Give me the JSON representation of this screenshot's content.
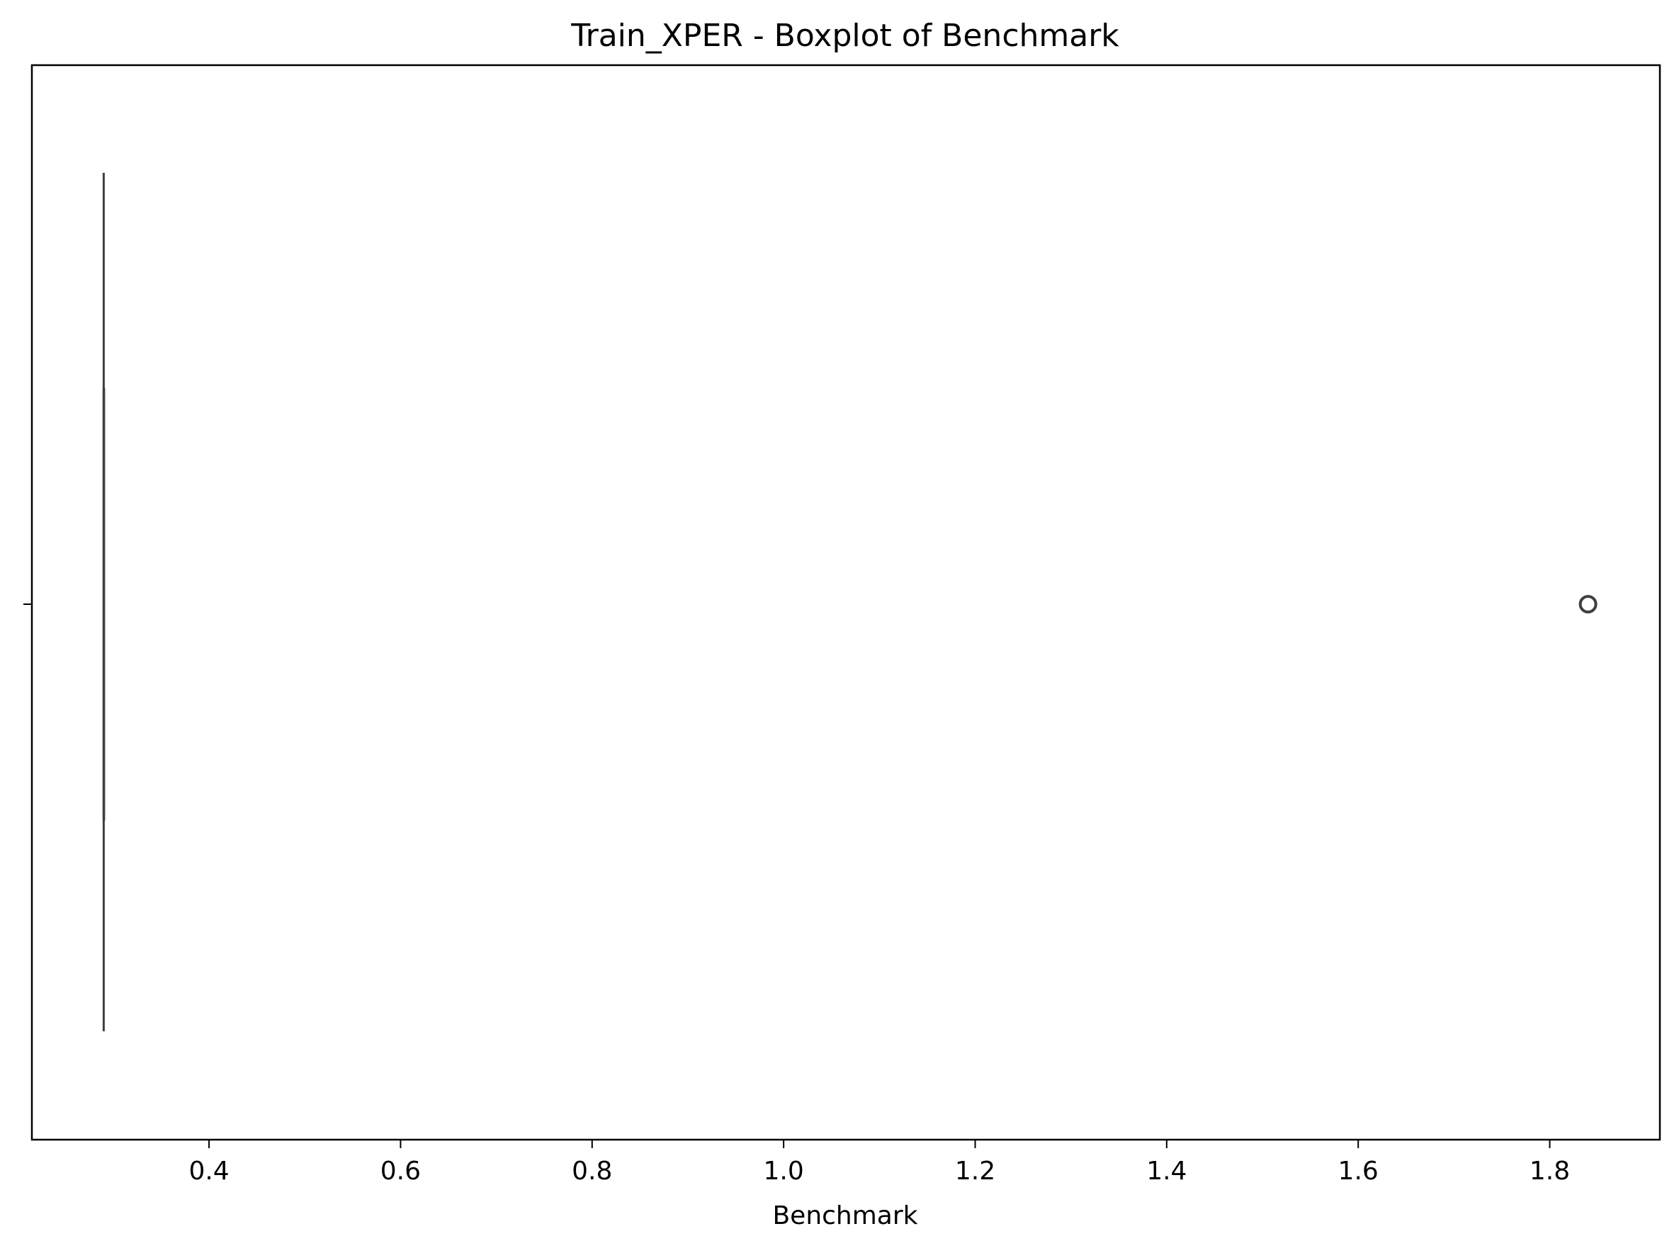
{
  "chart_data": {
    "type": "boxplot",
    "title": "Train_XPER - Boxplot of Benchmark",
    "xlabel": "Benchmark",
    "ylabel": "",
    "xlim": [
      0.215,
      1.915
    ],
    "xticks": [
      "0.4",
      "0.6",
      "0.8",
      "1.0",
      "1.2",
      "1.4",
      "1.6",
      "1.8"
    ],
    "grid": false,
    "series": [
      {
        "whisker_low": 0.29,
        "q1": 0.29,
        "median": 0.29,
        "q3": 0.29,
        "whisker_high": 0.29,
        "outliers": [
          1.84
        ]
      }
    ],
    "colors": {
      "box_line": "#3f3f3f",
      "axes": "#000000"
    }
  }
}
